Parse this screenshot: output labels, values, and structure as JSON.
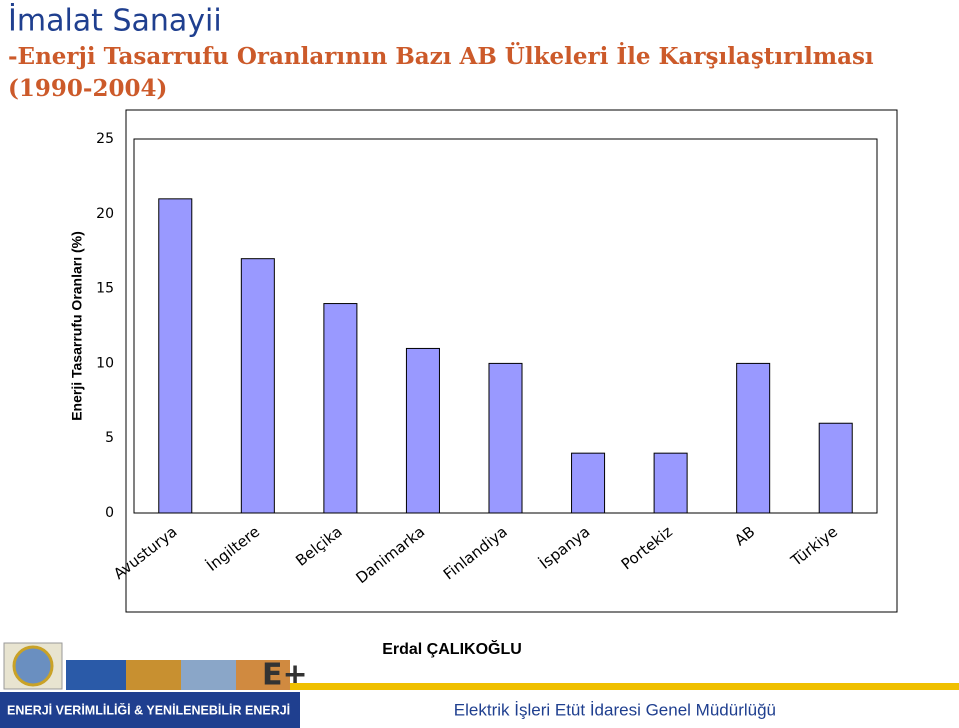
{
  "header": {
    "title": "İmalat Sanayii",
    "subtitle": [
      "-Enerji Tasarrufu Oranlarının Bazı AB Ülkeleri İle Karşılaştırılması",
      "(1990-2004)"
    ]
  },
  "chart_data": {
    "type": "bar",
    "ylabel": "Enerji Tasarrufu Oranları (%)",
    "categories": [
      "Avusturya",
      "İngiltere",
      "Belçika",
      "Danimarka",
      "Finlandiya",
      "İspanya",
      "Portekiz",
      "AB",
      "Türkiye"
    ],
    "values": [
      21,
      17,
      14,
      11,
      10,
      4,
      4,
      10,
      6
    ],
    "color": "#9999ff",
    "ylim": [
      0,
      25
    ],
    "yticks": [
      0,
      5,
      10,
      15,
      20,
      25
    ],
    "grid": false
  },
  "footer": {
    "author": "Erdal ÇALIKOĞLU",
    "left": "ENERJİ VERİMLİLİĞİ & YENİLENEBİLİR ENERJİ",
    "right": "Elektrik İşleri Etüt İdaresi Genel Müdürlüğü"
  }
}
